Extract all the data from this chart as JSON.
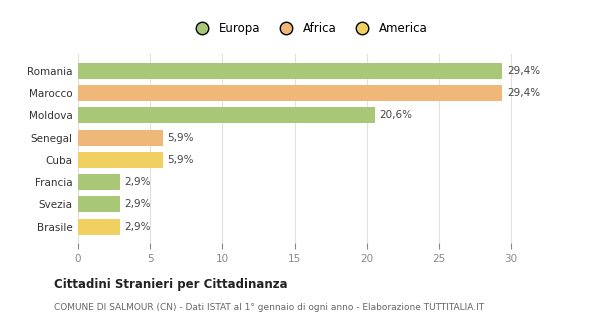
{
  "categories": [
    "Brasile",
    "Svezia",
    "Francia",
    "Cuba",
    "Senegal",
    "Moldova",
    "Marocco",
    "Romania"
  ],
  "values": [
    2.9,
    2.9,
    2.9,
    5.9,
    5.9,
    20.6,
    29.4,
    29.4
  ],
  "labels": [
    "2,9%",
    "2,9%",
    "2,9%",
    "5,9%",
    "5,9%",
    "20,6%",
    "29,4%",
    "29,4%"
  ],
  "colors": [
    "#f0d060",
    "#a8c878",
    "#a8c878",
    "#f0d060",
    "#f0b878",
    "#a8c878",
    "#f0b878",
    "#a8c878"
  ],
  "legend": [
    {
      "label": "Europa",
      "color": "#a8c878"
    },
    {
      "label": "Africa",
      "color": "#f0b878"
    },
    {
      "label": "America",
      "color": "#f0d060"
    }
  ],
  "xlim": [
    0,
    32
  ],
  "xticks": [
    0,
    5,
    10,
    15,
    20,
    25,
    30
  ],
  "title_main": "Cittadini Stranieri per Cittadinanza",
  "title_sub": "COMUNE DI SALMOUR (CN) - Dati ISTAT al 1° gennaio di ogni anno - Elaborazione TUTTITALIA.IT",
  "bg_color": "#ffffff",
  "grid_color": "#e0e0e0"
}
